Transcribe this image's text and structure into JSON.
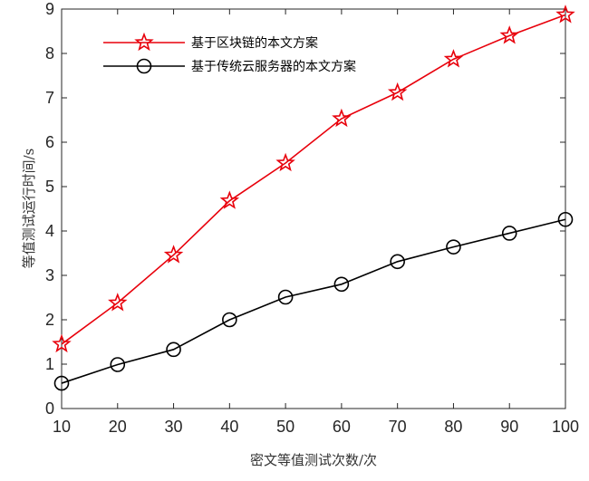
{
  "chart_data": {
    "type": "line",
    "title": "",
    "xlabel": "密文等值测试次数/次",
    "ylabel": "等值测试运行时间/s",
    "x": [
      10,
      20,
      30,
      40,
      50,
      60,
      70,
      80,
      90,
      100
    ],
    "xlim": [
      10,
      100
    ],
    "ylim": [
      0,
      9
    ],
    "xticks": [
      "10",
      "20",
      "30",
      "40",
      "50",
      "60",
      "70",
      "80",
      "90",
      "100"
    ],
    "yticks": [
      "0",
      "1",
      "2",
      "3",
      "4",
      "5",
      "6",
      "7",
      "8",
      "9"
    ],
    "grid": false,
    "legend_position": "top-left",
    "series": [
      {
        "name": "基于区块链的本文方案",
        "color": "#e8000b",
        "marker": "star",
        "values": [
          1.45,
          2.38,
          3.46,
          4.68,
          5.53,
          6.53,
          7.12,
          7.87,
          8.4,
          8.87
        ]
      },
      {
        "name": "基于传统云服务器的本文方案",
        "color": "#000000",
        "marker": "circle",
        "values": [
          0.57,
          0.99,
          1.33,
          2.0,
          2.51,
          2.8,
          3.31,
          3.64,
          3.95,
          4.26
        ]
      }
    ]
  }
}
